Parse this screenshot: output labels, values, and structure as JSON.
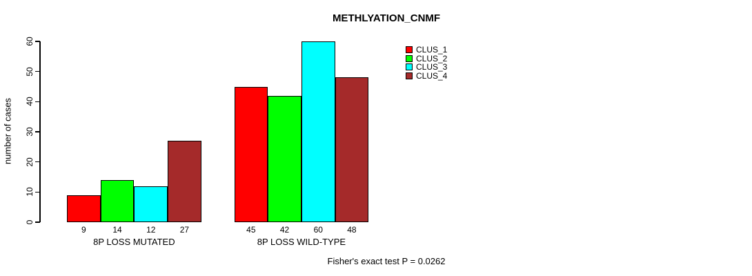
{
  "title": "METHLYATION_CNMF",
  "annotation": "Fisher's exact test P = 0.0262",
  "chart_data": {
    "type": "bar",
    "title": "METHLYATION_CNMF",
    "xlabel": "",
    "ylabel": "number of cases",
    "categories": [
      "8P LOSS MUTATED",
      "8P LOSS WILD-TYPE"
    ],
    "series": [
      {
        "name": "CLUS_1",
        "color": "#ff0000",
        "values": [
          9,
          45
        ]
      },
      {
        "name": "CLUS_2",
        "color": "#00ff00",
        "values": [
          14,
          42
        ]
      },
      {
        "name": "CLUS_3",
        "color": "#00ffff",
        "values": [
          12,
          60
        ]
      },
      {
        "name": "CLUS_4",
        "color": "#a52a2a",
        "values": [
          27,
          48
        ]
      }
    ],
    "bar_value_labels": [
      [
        "9",
        "14",
        "12",
        "27"
      ],
      [
        "45",
        "42",
        "60",
        "48"
      ]
    ],
    "yticks": [
      0,
      10,
      20,
      30,
      40,
      50,
      60
    ],
    "ylim": [
      0,
      60
    ],
    "grid": false,
    "legend_position": "top-right",
    "annotation": "Fisher's exact test P = 0.0262"
  }
}
